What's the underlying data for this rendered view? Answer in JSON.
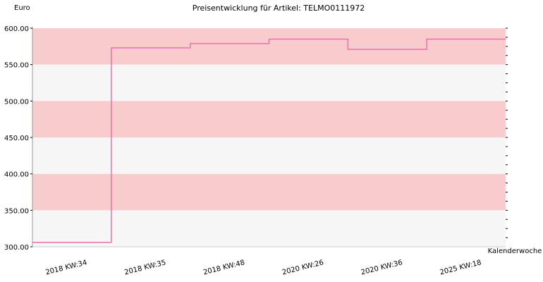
{
  "chart_data": {
    "type": "line",
    "title": "Preisentwicklung für Artikel: TELMO0111972",
    "ylabel": "Euro",
    "xlabel": "Kalenderwoche",
    "ylim": [
      300,
      600
    ],
    "yticks": [
      {
        "label": "600.00",
        "value": 600
      },
      {
        "label": "550.00",
        "value": 550
      },
      {
        "label": "500.00",
        "value": 500
      },
      {
        "label": "450.00",
        "value": 450
      },
      {
        "label": "400.00",
        "value": 400
      },
      {
        "label": "350.00",
        "value": 350
      },
      {
        "label": "300.00",
        "value": 300
      }
    ],
    "categories": [
      "2018 KW:34",
      "2018 KW:35",
      "2018 KW:48",
      "2020 KW:26",
      "2020 KW:36",
      "2025 KW:18"
    ],
    "series": [
      {
        "values": [
          306,
          573,
          579,
          585,
          571,
          585
        ],
        "step": true,
        "color": "#f06db4"
      }
    ],
    "band_colors": [
      "#f8cccc",
      "#f6f6f6"
    ],
    "grid": false
  }
}
